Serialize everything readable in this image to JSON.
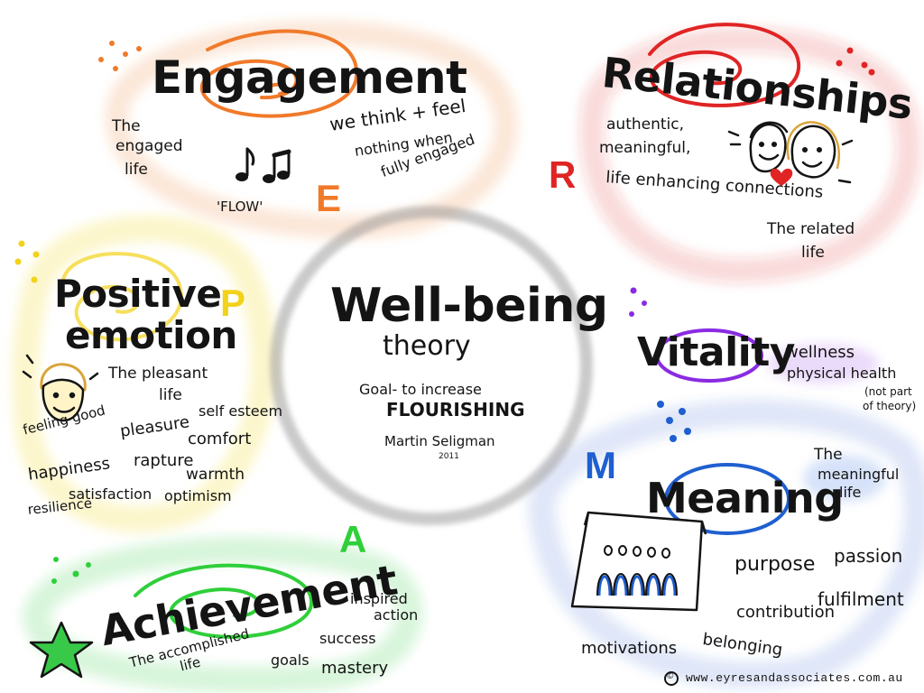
{
  "center": {
    "title": "Well-being",
    "subtitle": "theory",
    "goal": "Goal- to increase",
    "flourishing": "FLOURISHING",
    "author": "Martin Seligman",
    "year": "2011"
  },
  "engagement": {
    "title": "Engagement",
    "letter": "E",
    "engaged_life_1": "The",
    "engaged_life_2": "engaged",
    "engaged_life_3": "life",
    "flow": "'FLOW'",
    "think_1": "we think + feel",
    "think_2": "nothing when",
    "think_3": "fully engaged"
  },
  "relationships": {
    "title": "Relationships",
    "letter": "R",
    "auth_1": "authentic,",
    "auth_2": "meaningful,",
    "auth_3": "life enhancing connections",
    "related_1": "The related",
    "related_2": "life"
  },
  "positive_emotion": {
    "title_1": "Positive",
    "title_2": "emotion",
    "letter": "P",
    "pleasant_1": "The pleasant",
    "pleasant_2": "life",
    "feeling_good": "feeling good",
    "self_esteem": "self esteem",
    "pleasure": "pleasure",
    "comfort": "comfort",
    "rapture": "rapture",
    "warmth": "warmth",
    "happiness": "happiness",
    "satisfaction": "satisfaction",
    "optimism": "optimism",
    "resilience": "resilience"
  },
  "vitality": {
    "title": "Vitality",
    "wellness": "wellness",
    "physical_health": "physical health",
    "note_1": "(not part",
    "note_2": "of theory)"
  },
  "meaning": {
    "title": "Meaning",
    "letter": "M",
    "meaningful_1": "The",
    "meaningful_2": "meaningful",
    "meaningful_3": "life",
    "purpose": "purpose",
    "passion": "passion",
    "fulfilment": "fulfilment",
    "contribution": "contribution",
    "belonging": "belonging",
    "motivations": "motivations"
  },
  "achievement": {
    "title": "Achievement",
    "letter": "A",
    "accomplished_1": "The accomplished",
    "accomplished_2": "life",
    "inspired_1": "inspired",
    "inspired_2": "action",
    "success": "success",
    "goals": "goals",
    "mastery": "mastery"
  },
  "footer": {
    "copyright": "©",
    "url": "www.eyresandassociates.com.au"
  },
  "colors": {
    "engagement": "#f07a2a",
    "relationships": "#e02424",
    "positive": "#f2d21a",
    "vitality": "#8a2be2",
    "meaning": "#1f5fd0",
    "achievement": "#2fcf3a",
    "center": "#8a8a8a",
    "ink": "#141414"
  }
}
